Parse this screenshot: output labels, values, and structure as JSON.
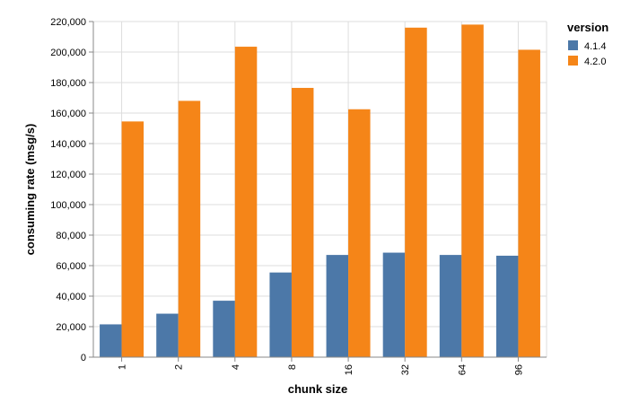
{
  "chart_data": {
    "type": "bar",
    "xlabel": "chunk size",
    "ylabel": "consuming rate (msg/s)",
    "categories": [
      "1",
      "2",
      "4",
      "8",
      "16",
      "32",
      "64",
      "96"
    ],
    "ylim": [
      0,
      220000
    ],
    "yticks": [
      "0",
      "20,000",
      "40,000",
      "60,000",
      "80,000",
      "100,000",
      "120,000",
      "140,000",
      "160,000",
      "180,000",
      "200,000",
      "220,000"
    ],
    "grid": true,
    "legend": {
      "title": "version",
      "placement": "top-right"
    },
    "series": [
      {
        "name": "4.1.4",
        "color": "#4c78a8",
        "values": [
          21500,
          28500,
          37000,
          55500,
          67000,
          68500,
          67000,
          66500
        ]
      },
      {
        "name": "4.2.0",
        "color": "#f58518",
        "values": [
          154500,
          168000,
          203500,
          176500,
          162500,
          216000,
          218000,
          201500
        ]
      }
    ]
  }
}
